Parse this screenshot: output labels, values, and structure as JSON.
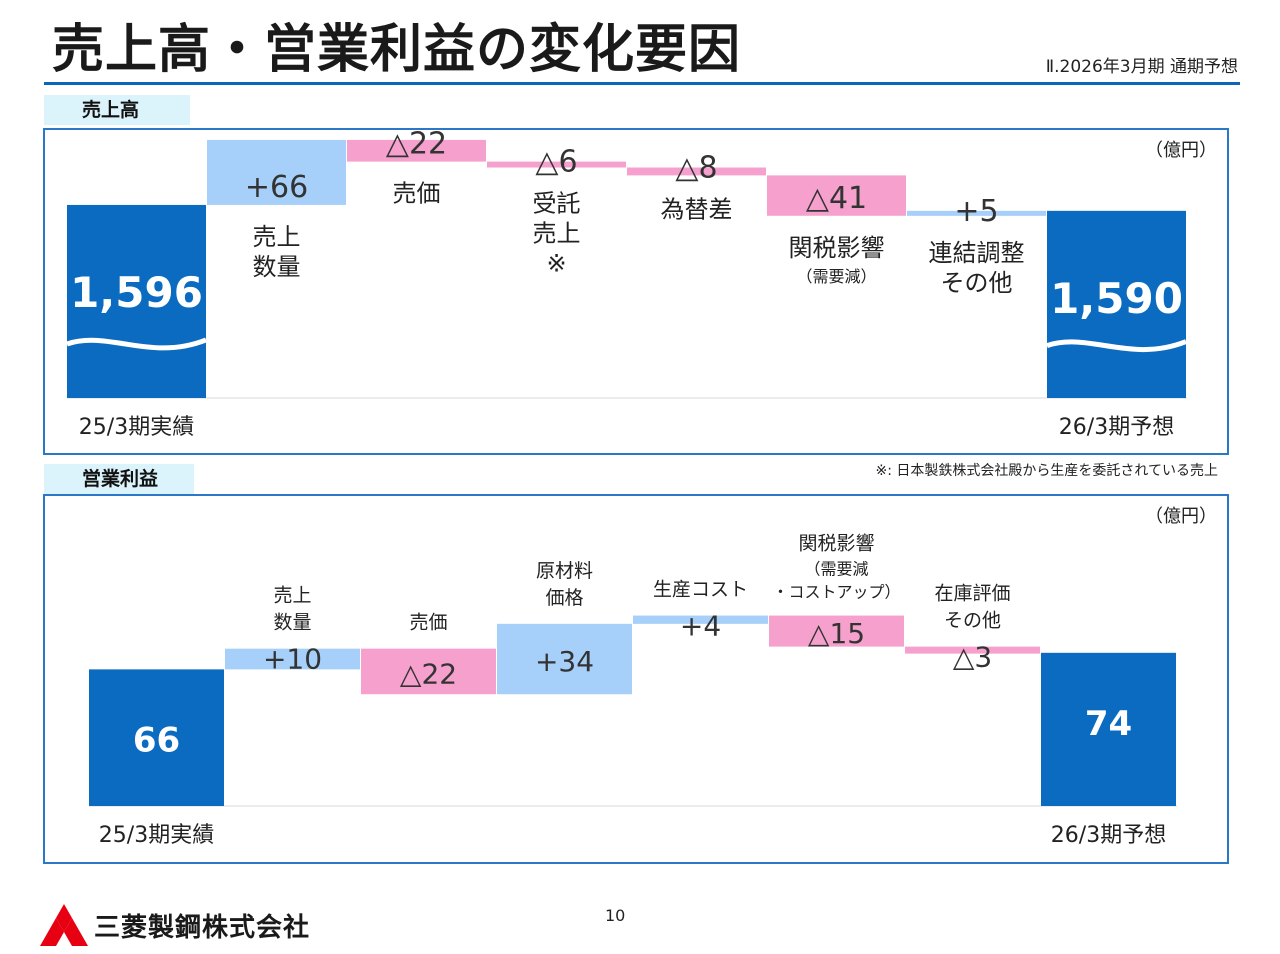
{
  "header": {
    "title": "売上高・営業利益の変化要因",
    "subtitle": "Ⅱ.2026年3月期 通期予想"
  },
  "sections": {
    "sales_label": "売上高",
    "profit_label": "営業利益",
    "unit": "（億円）"
  },
  "footnote": "※: 日本製鉄株式会社殿から生産を委託されている売上",
  "page_number": "10",
  "company": "三菱製鋼株式会社",
  "colors": {
    "total": "#0b6bc0",
    "increase": "#a6cff9",
    "decrease": "#f5a0cd"
  },
  "chart_data": [
    {
      "type": "bar",
      "subtype": "waterfall",
      "title": "売上高",
      "unit": "（億円）",
      "steps": [
        {
          "label": "25/3期実績",
          "value": 1596,
          "kind": "total",
          "display": "1,596"
        },
        {
          "label": "売上\n数量",
          "value": 66,
          "kind": "delta",
          "display": "+66"
        },
        {
          "label": "売価",
          "value": -22,
          "kind": "delta",
          "display": "△22"
        },
        {
          "label": "受託\n売上\n※",
          "value": -6,
          "kind": "delta",
          "display": "△6"
        },
        {
          "label": "為替差",
          "value": -8,
          "kind": "delta",
          "display": "△8"
        },
        {
          "label": "関税影響",
          "sublabel": "（需要減）",
          "value": -41,
          "kind": "delta",
          "display": "△41"
        },
        {
          "label": "連結調整\nその他",
          "value": 5,
          "kind": "delta",
          "display": "+5"
        },
        {
          "label": "26/3期予想",
          "value": 1590,
          "kind": "total",
          "display": "1,590"
        }
      ]
    },
    {
      "type": "bar",
      "subtype": "waterfall",
      "title": "営業利益",
      "unit": "（億円）",
      "steps": [
        {
          "label": "25/3期実績",
          "value": 66,
          "kind": "total",
          "display": "66"
        },
        {
          "label": "売上\n数量",
          "value": 10,
          "kind": "delta",
          "display": "+10"
        },
        {
          "label": "売価",
          "value": -22,
          "kind": "delta",
          "display": "△22"
        },
        {
          "label": "原材料\n価格",
          "value": 34,
          "kind": "delta",
          "display": "+34"
        },
        {
          "label": "生産コスト",
          "value": 4,
          "kind": "delta",
          "display": "+4"
        },
        {
          "label": "関税影響",
          "sublabel": "（需要減\n・コストアップ）",
          "value": -15,
          "kind": "delta",
          "display": "△15"
        },
        {
          "label": "在庫評価\nその他",
          "value": -3,
          "kind": "delta",
          "display": "△3"
        },
        {
          "label": "26/3期予想",
          "value": 74,
          "kind": "total",
          "display": "74"
        }
      ]
    }
  ]
}
